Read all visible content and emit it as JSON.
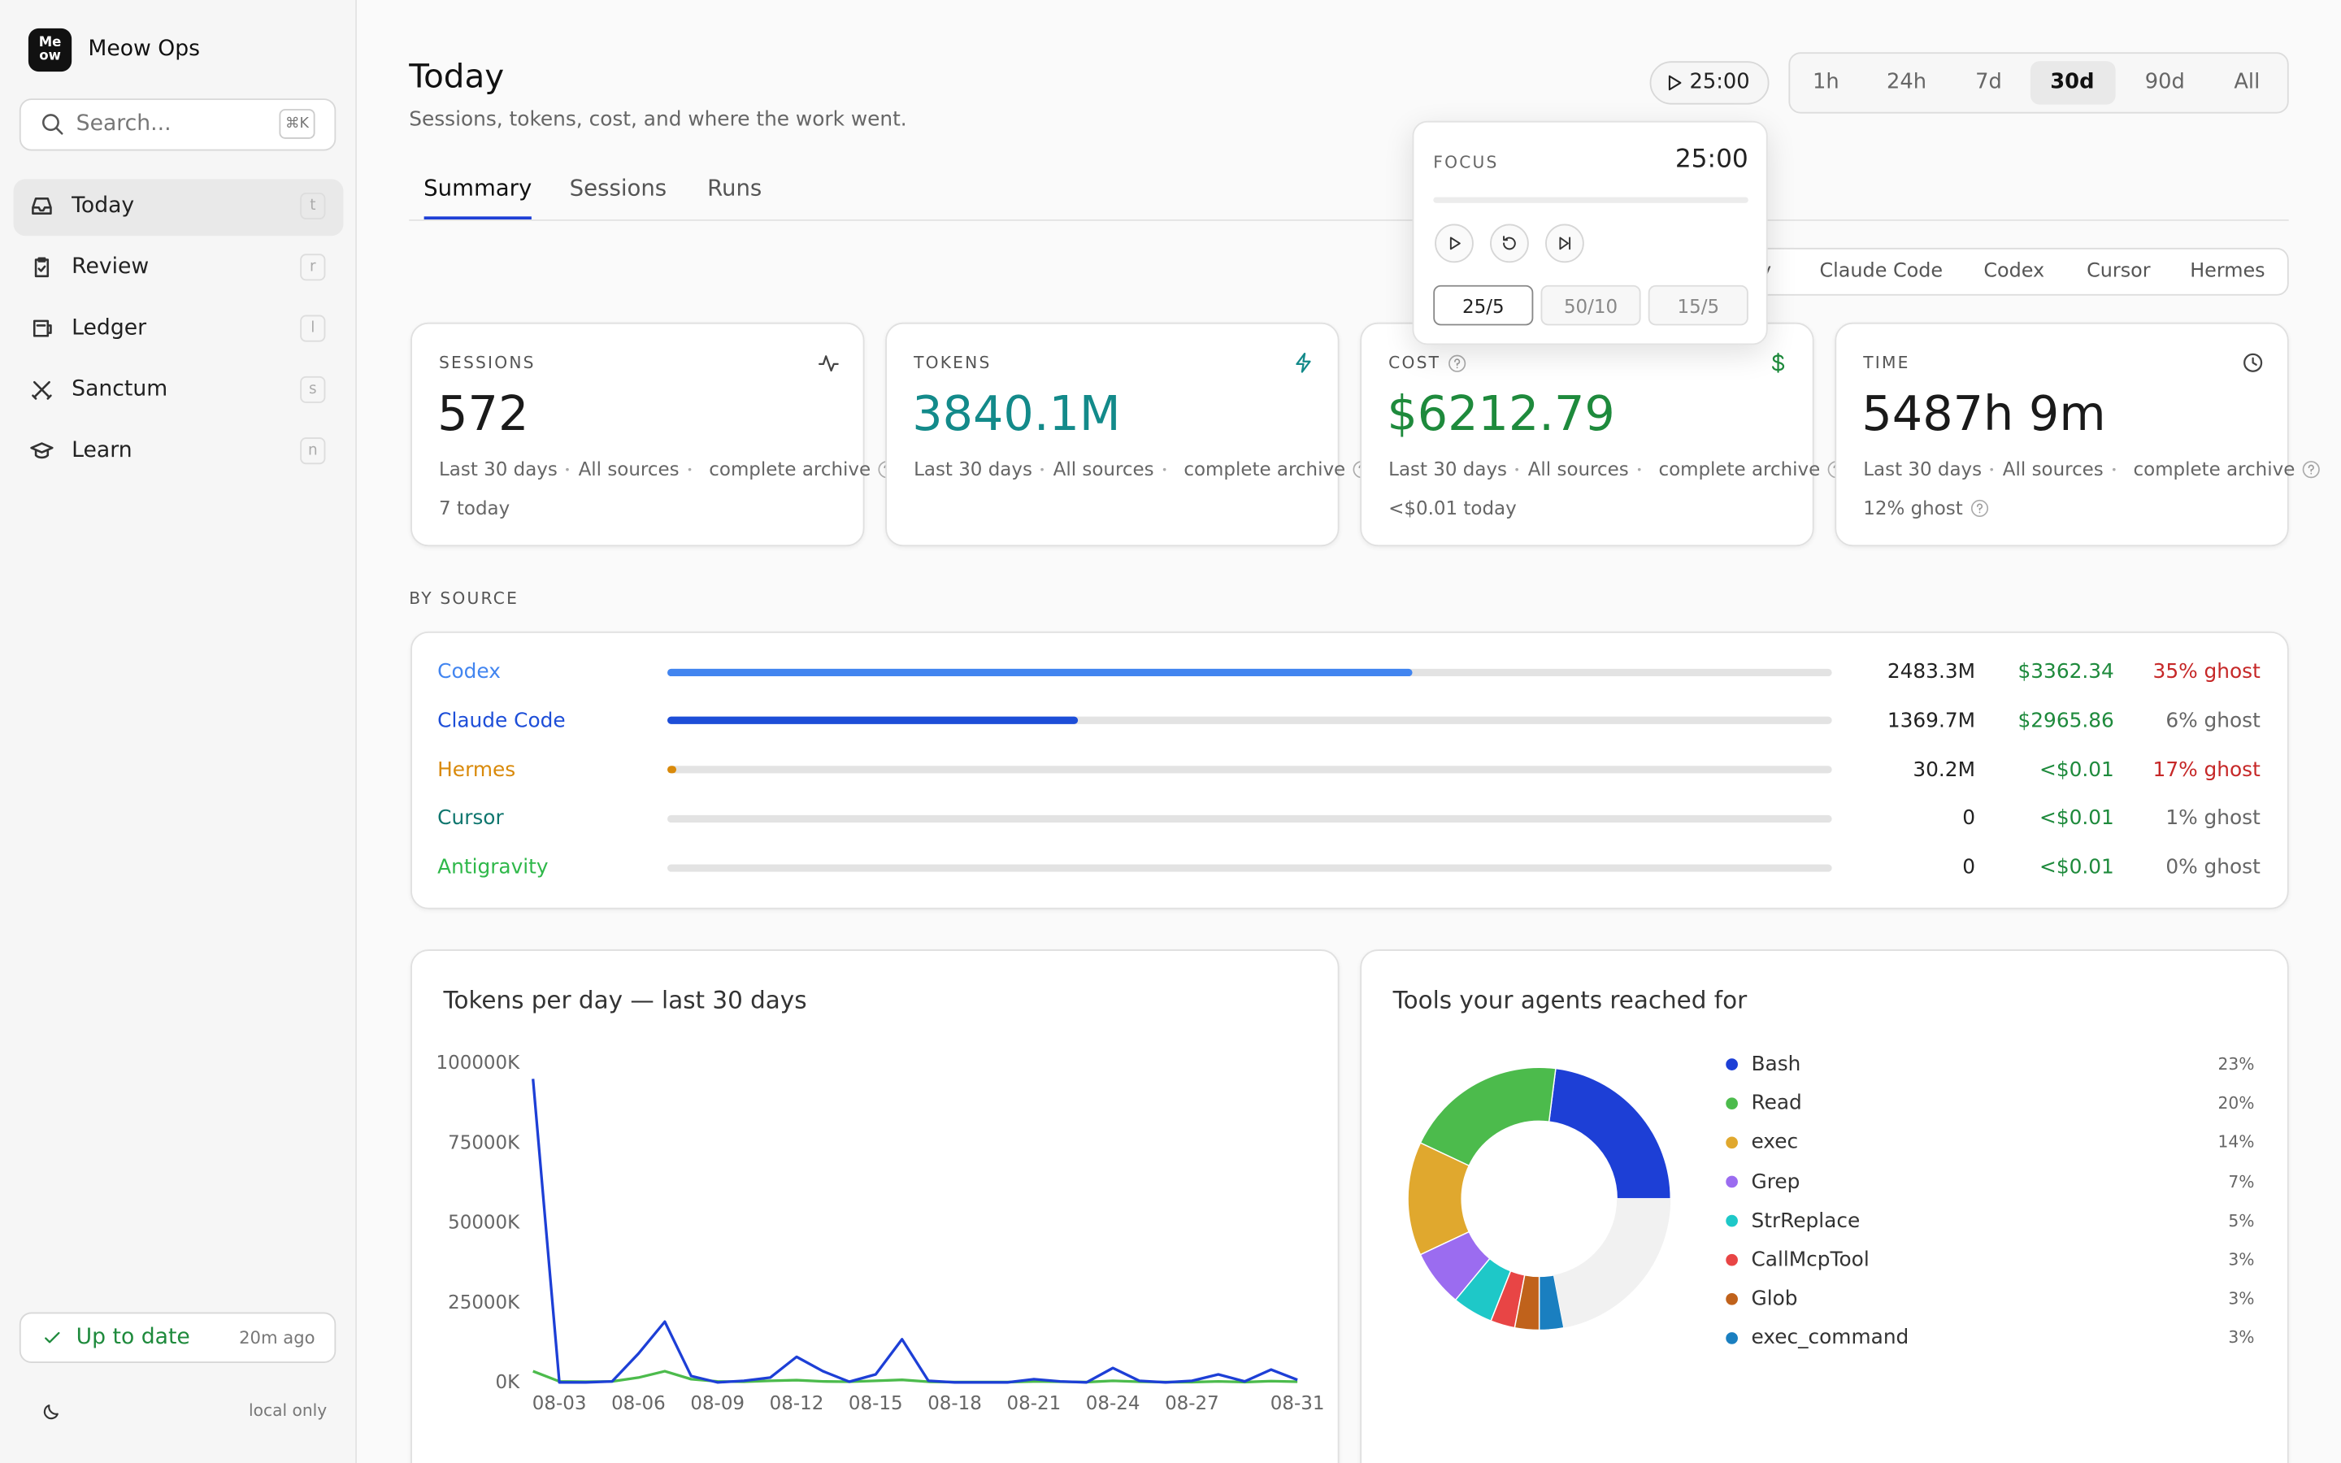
{
  "app": {
    "name": "Meow Ops",
    "logo": [
      "Me",
      "ow"
    ]
  },
  "search": {
    "placeholder": "Search...",
    "shortcut": "⌘K"
  },
  "nav": [
    {
      "label": "Today",
      "key": "t"
    },
    {
      "label": "Review",
      "key": "r"
    },
    {
      "label": "Ledger",
      "key": "l"
    },
    {
      "label": "Sanctum",
      "key": "s"
    },
    {
      "label": "Learn",
      "key": "n"
    }
  ],
  "active_nav": 0,
  "status": {
    "label": "Up to date",
    "time": "20m ago"
  },
  "footer": "local only",
  "header": {
    "title": "Today",
    "subtitle": "Sessions, tokens, cost, and where the work went."
  },
  "timer": "25:00",
  "ranges": [
    "1h",
    "24h",
    "7d",
    "30d",
    "90d",
    "All"
  ],
  "active_range": 3,
  "tabs": [
    "Summary",
    "Sessions",
    "Runs"
  ],
  "active_tab": 0,
  "sources_filter": [
    "Any",
    "Claude Code",
    "Codex",
    "Cursor",
    "Hermes"
  ],
  "focus": {
    "label": "FOCUS",
    "time": "25:00",
    "presets": [
      "25/5",
      "50/10",
      "15/5"
    ],
    "active_preset": 0
  },
  "stats": [
    {
      "label": "SESSIONS",
      "value": "572",
      "color": "#1a1a1a",
      "meta": [
        "Last 30 days",
        "All sources",
        "complete archive"
      ],
      "note": "7 today"
    },
    {
      "label": "TOKENS",
      "value": "3840.1M",
      "color": "#138a8a",
      "meta": [
        "Last 30 days",
        "All sources",
        "complete archive"
      ]
    },
    {
      "label": "COST",
      "value": "$6212.79",
      "color": "#1e8a3c",
      "meta": [
        "Last 30 days",
        "All sources",
        "complete archive"
      ],
      "note": "<$0.01 today"
    },
    {
      "label": "TIME",
      "value": "5487h 9m",
      "color": "#1a1a1a",
      "meta": [
        "Last 30 days",
        "All sources",
        "complete archive"
      ],
      "note": "12% ghost"
    }
  ],
  "by_source": {
    "label": "BY SOURCE",
    "rows": [
      {
        "name": "Codex",
        "color": "#4285f0",
        "tokens": 2483.3,
        "tokens_label": "2483.3M",
        "cost": "$3362.34",
        "ghost": "35% ghost",
        "ghost_color": "#c62828"
      },
      {
        "name": "Claude Code",
        "color": "#1d4ed8",
        "tokens": 1369.7,
        "tokens_label": "1369.7M",
        "cost": "$2965.86",
        "ghost": "6% ghost",
        "ghost_color": "#666666"
      },
      {
        "name": "Hermes",
        "color": "#d98a0b",
        "tokens": 30.2,
        "tokens_label": "30.2M",
        "cost": "<$0.01",
        "ghost": "17% ghost",
        "ghost_color": "#c62828"
      },
      {
        "name": "Cursor",
        "color": "#0f766e",
        "tokens": 0,
        "cost": "<$0.01",
        "ghost": "1% ghost",
        "ghost_color": "#666666"
      },
      {
        "name": "Antigravity",
        "color": "#2fb84a",
        "tokens": 0,
        "cost": "<$0.01",
        "ghost": "0% ghost",
        "ghost_color": "#666666"
      }
    ]
  },
  "tokens_chart": {
    "type": "line",
    "title": "Tokens per day — last 30 days",
    "categories": [
      null,
      "08-03",
      null,
      null,
      "08-06",
      null,
      null,
      "08-09",
      null,
      null,
      "08-12",
      null,
      null,
      "08-15",
      null,
      null,
      "08-18",
      null,
      null,
      "08-21",
      null,
      null,
      "08-24",
      null,
      null,
      "08-27",
      null,
      null,
      null,
      "08-31"
    ],
    "ylim": [
      0,
      100000
    ],
    "yticks": [
      {
        "value": 0,
        "label": "0K"
      },
      {
        "value": 25000,
        "label": "25000K"
      },
      {
        "value": 50000,
        "label": "50000K"
      },
      {
        "value": 75000,
        "label": "75000K"
      },
      {
        "value": 100000,
        "label": "100000K"
      }
    ],
    "series": [
      {
        "color": "#1d3fd6",
        "values": [
          95000,
          0,
          0,
          300,
          9000,
          19000,
          2000,
          0,
          500,
          1500,
          8000,
          3500,
          200,
          2500,
          13500,
          500,
          0,
          0,
          0,
          1000,
          300,
          0,
          4500,
          500,
          0,
          500,
          2500,
          300,
          4000,
          800
        ]
      },
      {
        "color": "#4cbb4c",
        "values": [
          3500,
          300,
          200,
          300,
          1500,
          3500,
          1000,
          300,
          200,
          500,
          700,
          300,
          200,
          500,
          800,
          200,
          100,
          100,
          100,
          300,
          200,
          100,
          500,
          200,
          100,
          100,
          300,
          100,
          400,
          200
        ]
      }
    ]
  },
  "tools_chart": {
    "type": "pie",
    "title": "Tools your agents reached for",
    "categories": [
      "Bash",
      "Read",
      "exec",
      "Grep",
      "StrReplace",
      "CallMcpTool",
      "Glob",
      "exec_command"
    ],
    "values": [
      23,
      20,
      14,
      7,
      5,
      3,
      3,
      3
    ],
    "value_labels": [
      "23%",
      "20%",
      "14%",
      "7%",
      "5%",
      "3%",
      "3%",
      "3%"
    ],
    "colors": [
      "#1d3fd6",
      "#4cbb4c",
      "#e0a82e",
      "#9b6cf0",
      "#1ec8c8",
      "#e84545",
      "#c0621b",
      "#1a7fc0"
    ]
  }
}
